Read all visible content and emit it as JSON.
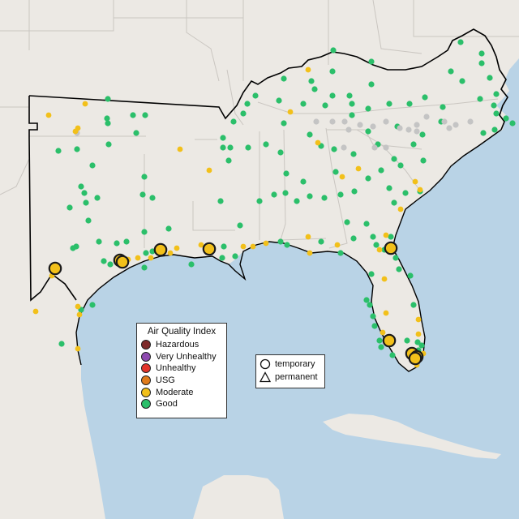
{
  "legend": {
    "title": "Air Quality Index",
    "categories": [
      {
        "label": "Hazardous",
        "color": "#7e2a2a"
      },
      {
        "label": "Very Unhealthy",
        "color": "#8e4ab0"
      },
      {
        "label": "Unhealthy",
        "color": "#e3342b"
      },
      {
        "label": "USG",
        "color": "#e07b1c"
      },
      {
        "label": "Moderate",
        "color": "#f2c01a"
      },
      {
        "label": "Good",
        "color": "#2bbf6a"
      }
    ]
  },
  "type_legend": {
    "temporary": "temporary",
    "permanent": "permanent"
  },
  "colors": {
    "water": "#b9d3e6",
    "land": "#ece9e4",
    "state_line": "#c9c6c2",
    "region_outline": "#000000",
    "no_data": "#c4c4c4",
    "monitor_outline": "#1a1a1a"
  }
}
